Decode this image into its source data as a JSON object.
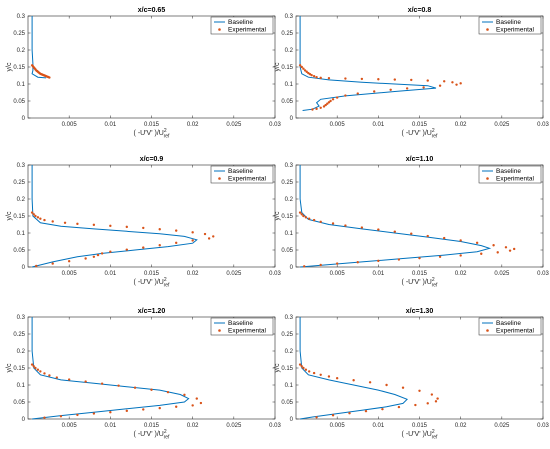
{
  "figure": {
    "xlabel": "( -U'V' )/U",
    "xlabel_sup": "2",
    "xlabel_sub": "ref",
    "ylabel": "y/c",
    "legend": [
      "Baseline",
      "Experimental"
    ],
    "colors": {
      "baseline": "#0072BD",
      "experimental": "#D95319"
    }
  },
  "chart_data": [
    {
      "type": "line",
      "title": "x/c=0.65",
      "grid": false,
      "legend_position": "top-right",
      "xlim": [
        0,
        0.03
      ],
      "ylim": [
        0,
        0.3
      ],
      "xticks": [
        "0.005",
        "0.01",
        "0.015",
        "0.02",
        "0.025",
        "0.03"
      ],
      "yticks": [
        "0",
        "0.05",
        "0.1",
        "0.15",
        "0.2",
        "0.25",
        "0.3"
      ],
      "series": [
        {
          "name": "Baseline",
          "style": "line",
          "x": [
            0.0005,
            0.0005,
            0.0005,
            0.0006,
            0.0006,
            0.0005,
            0.0012,
            0.0022
          ],
          "y": [
            0.3,
            0.25,
            0.2,
            0.16,
            0.14,
            0.13,
            0.12,
            0.118
          ]
        },
        {
          "name": "Experimental",
          "style": "marker",
          "x": [
            0.0005,
            0.0006,
            0.0007,
            0.0008,
            0.0009,
            0.001,
            0.0011,
            0.0012,
            0.0013,
            0.0014,
            0.0015,
            0.0016,
            0.0017,
            0.0018,
            0.0019,
            0.002,
            0.0021,
            0.0022,
            0.0023,
            0.0024,
            0.0025,
            0.0026
          ],
          "y": [
            0.155,
            0.152,
            0.149,
            0.146,
            0.143,
            0.14,
            0.138,
            0.136,
            0.134,
            0.132,
            0.13,
            0.129,
            0.128,
            0.127,
            0.126,
            0.125,
            0.124,
            0.123,
            0.122,
            0.121,
            0.12,
            0.119
          ]
        }
      ]
    },
    {
      "type": "line",
      "title": "x/c=0.8",
      "grid": false,
      "legend_position": "top-right",
      "xlim": [
        0,
        0.03
      ],
      "ylim": [
        0,
        0.3
      ],
      "xticks": [
        "0.005",
        "0.01",
        "0.015",
        "0.02",
        "0.025",
        "0.03"
      ],
      "yticks": [
        "0",
        "0.05",
        "0.1",
        "0.15",
        "0.2",
        "0.25",
        "0.3"
      ],
      "series": [
        {
          "name": "Baseline",
          "style": "line",
          "x": [
            0.0005,
            0.0005,
            0.0005,
            0.0007,
            0.0015,
            0.004,
            0.008,
            0.012,
            0.016,
            0.017,
            0.012,
            0.006,
            0.003,
            0.0025,
            0.0028,
            0.002,
            0.0008
          ],
          "y": [
            0.3,
            0.2,
            0.15,
            0.13,
            0.12,
            0.112,
            0.105,
            0.1,
            0.095,
            0.088,
            0.078,
            0.065,
            0.055,
            0.045,
            0.035,
            0.026,
            0.022
          ]
        },
        {
          "name": "Experimental",
          "style": "marker",
          "x": [
            0.0005,
            0.0007,
            0.0009,
            0.0011,
            0.0013,
            0.0015,
            0.0017,
            0.0019,
            0.0022,
            0.0025,
            0.003,
            0.004,
            0.006,
            0.008,
            0.01,
            0.012,
            0.014,
            0.016,
            0.018,
            0.019,
            0.02,
            0.0195,
            0.0175,
            0.0155,
            0.0135,
            0.0115,
            0.0095,
            0.0075,
            0.006,
            0.005,
            0.0045,
            0.0042,
            0.004,
            0.0038,
            0.0036,
            0.0034,
            0.003,
            0.0025,
            0.002
          ],
          "y": [
            0.155,
            0.15,
            0.145,
            0.14,
            0.136,
            0.132,
            0.129,
            0.126,
            0.123,
            0.12,
            0.118,
            0.117,
            0.116,
            0.115,
            0.114,
            0.113,
            0.112,
            0.11,
            0.108,
            0.105,
            0.102,
            0.098,
            0.095,
            0.09,
            0.087,
            0.083,
            0.078,
            0.072,
            0.066,
            0.06,
            0.055,
            0.05,
            0.046,
            0.042,
            0.038,
            0.034,
            0.03,
            0.027,
            0.025
          ]
        }
      ]
    },
    {
      "type": "line",
      "title": "x/c=0.9",
      "grid": false,
      "legend_position": "top-right",
      "xlim": [
        0,
        0.03
      ],
      "ylim": [
        0,
        0.3
      ],
      "xticks": [
        "0.005",
        "0.01",
        "0.015",
        "0.02",
        "0.025",
        "0.03"
      ],
      "yticks": [
        "0",
        "0.05",
        "0.1",
        "0.15",
        "0.2",
        "0.25",
        "0.3"
      ],
      "series": [
        {
          "name": "Baseline",
          "style": "line",
          "x": [
            0.0005,
            0.0005,
            0.0006,
            0.0015,
            0.004,
            0.008,
            0.012,
            0.016,
            0.019,
            0.0205,
            0.02,
            0.017,
            0.013,
            0.009,
            0.006,
            0.003,
            0.0005
          ],
          "y": [
            0.3,
            0.2,
            0.15,
            0.13,
            0.12,
            0.112,
            0.105,
            0.098,
            0.09,
            0.08,
            0.07,
            0.06,
            0.05,
            0.04,
            0.03,
            0.015,
            0.0
          ]
        },
        {
          "name": "Experimental",
          "style": "marker",
          "x": [
            0.0005,
            0.0007,
            0.0009,
            0.0012,
            0.0015,
            0.002,
            0.003,
            0.0045,
            0.006,
            0.008,
            0.01,
            0.012,
            0.014,
            0.016,
            0.018,
            0.02,
            0.0215,
            0.0225,
            0.022,
            0.02,
            0.018,
            0.016,
            0.014,
            0.012,
            0.01,
            0.009,
            0.0085,
            0.008,
            0.007,
            0.005,
            0.003,
            0.001
          ],
          "y": [
            0.16,
            0.155,
            0.15,
            0.146,
            0.142,
            0.138,
            0.134,
            0.13,
            0.127,
            0.124,
            0.121,
            0.118,
            0.115,
            0.111,
            0.107,
            0.102,
            0.097,
            0.09,
            0.084,
            0.078,
            0.071,
            0.064,
            0.057,
            0.051,
            0.045,
            0.04,
            0.035,
            0.03,
            0.025,
            0.017,
            0.01,
            0.003
          ]
        }
      ]
    },
    {
      "type": "line",
      "title": "x/c=1.10",
      "grid": false,
      "legend_position": "top-right",
      "xlim": [
        0,
        0.03
      ],
      "ylim": [
        0,
        0.3
      ],
      "xticks": [
        "0.005",
        "0.01",
        "0.015",
        "0.02",
        "0.025",
        "0.03"
      ],
      "yticks": [
        "0",
        "0.05",
        "0.1",
        "0.15",
        "0.2",
        "0.25",
        "0.3"
      ],
      "series": [
        {
          "name": "Baseline",
          "style": "line",
          "x": [
            0.0005,
            0.0005,
            0.0007,
            0.0015,
            0.004,
            0.008,
            0.012,
            0.016,
            0.02,
            0.0225,
            0.0235,
            0.022,
            0.018,
            0.013,
            0.008,
            0.004,
            0.0005
          ],
          "y": [
            0.3,
            0.2,
            0.16,
            0.14,
            0.125,
            0.112,
            0.1,
            0.088,
            0.075,
            0.063,
            0.055,
            0.045,
            0.035,
            0.025,
            0.015,
            0.007,
            0.0
          ]
        },
        {
          "name": "Experimental",
          "style": "marker",
          "x": [
            0.0005,
            0.0007,
            0.0009,
            0.0012,
            0.0016,
            0.0022,
            0.003,
            0.0045,
            0.006,
            0.008,
            0.01,
            0.012,
            0.014,
            0.016,
            0.018,
            0.02,
            0.022,
            0.024,
            0.0255,
            0.0265,
            0.026,
            0.0245,
            0.0225,
            0.02,
            0.0175,
            0.015,
            0.0125,
            0.01,
            0.0075,
            0.005,
            0.003,
            0.001
          ],
          "y": [
            0.16,
            0.155,
            0.15,
            0.146,
            0.142,
            0.138,
            0.133,
            0.128,
            0.122,
            0.116,
            0.11,
            0.104,
            0.098,
            0.091,
            0.085,
            0.078,
            0.071,
            0.064,
            0.058,
            0.053,
            0.048,
            0.043,
            0.039,
            0.034,
            0.03,
            0.026,
            0.022,
            0.018,
            0.014,
            0.01,
            0.006,
            0.002
          ]
        }
      ]
    },
    {
      "type": "line",
      "title": "x/c=1.20",
      "grid": false,
      "legend_position": "top-right",
      "xlim": [
        0,
        0.03
      ],
      "ylim": [
        0,
        0.3
      ],
      "xticks": [
        "0.005",
        "0.01",
        "0.015",
        "0.02",
        "0.025",
        "0.03"
      ],
      "yticks": [
        "0",
        "0.05",
        "0.1",
        "0.15",
        "0.2",
        "0.25",
        "0.3"
      ],
      "series": [
        {
          "name": "Baseline",
          "style": "line",
          "x": [
            0.0005,
            0.0005,
            0.0007,
            0.0015,
            0.004,
            0.008,
            0.012,
            0.016,
            0.0185,
            0.0195,
            0.019,
            0.016,
            0.012,
            0.008,
            0.004,
            0.0005
          ],
          "y": [
            0.3,
            0.2,
            0.15,
            0.13,
            0.115,
            0.105,
            0.095,
            0.085,
            0.072,
            0.06,
            0.05,
            0.04,
            0.03,
            0.02,
            0.01,
            0.0
          ]
        },
        {
          "name": "Experimental",
          "style": "marker",
          "x": [
            0.0005,
            0.0007,
            0.0009,
            0.0012,
            0.0015,
            0.002,
            0.0026,
            0.0035,
            0.005,
            0.007,
            0.009,
            0.011,
            0.013,
            0.015,
            0.017,
            0.019,
            0.0205,
            0.021,
            0.02,
            0.018,
            0.016,
            0.014,
            0.012,
            0.01,
            0.008,
            0.006,
            0.004,
            0.002
          ],
          "y": [
            0.16,
            0.155,
            0.15,
            0.145,
            0.14,
            0.134,
            0.128,
            0.122,
            0.116,
            0.11,
            0.104,
            0.098,
            0.092,
            0.086,
            0.079,
            0.071,
            0.06,
            0.047,
            0.04,
            0.036,
            0.032,
            0.028,
            0.024,
            0.02,
            0.016,
            0.012,
            0.008,
            0.004
          ]
        }
      ]
    },
    {
      "type": "line",
      "title": "x/c=1.30",
      "grid": false,
      "legend_position": "top-right",
      "xlim": [
        0,
        0.03
      ],
      "ylim": [
        0,
        0.3
      ],
      "xticks": [
        "0.005",
        "0.01",
        "0.015",
        "0.02",
        "0.025",
        "0.03"
      ],
      "yticks": [
        "0",
        "0.05",
        "0.1",
        "0.15",
        "0.2",
        "0.25",
        "0.3"
      ],
      "series": [
        {
          "name": "Baseline",
          "style": "line",
          "x": [
            0.0005,
            0.0005,
            0.0007,
            0.0015,
            0.004,
            0.007,
            0.01,
            0.012,
            0.0135,
            0.013,
            0.011,
            0.008,
            0.005,
            0.002,
            0.0005
          ],
          "y": [
            0.3,
            0.2,
            0.15,
            0.13,
            0.115,
            0.1,
            0.085,
            0.072,
            0.058,
            0.046,
            0.036,
            0.026,
            0.016,
            0.006,
            0.0
          ]
        },
        {
          "name": "Experimental",
          "style": "marker",
          "x": [
            0.0005,
            0.0007,
            0.0009,
            0.0012,
            0.0016,
            0.0022,
            0.003,
            0.004,
            0.005,
            0.007,
            0.009,
            0.011,
            0.013,
            0.015,
            0.0165,
            0.0172,
            0.017,
            0.016,
            0.0145,
            0.0125,
            0.0105,
            0.0085,
            0.0065,
            0.0045,
            0.0025
          ],
          "y": [
            0.16,
            0.155,
            0.15,
            0.145,
            0.14,
            0.135,
            0.13,
            0.125,
            0.12,
            0.114,
            0.108,
            0.1,
            0.092,
            0.083,
            0.072,
            0.06,
            0.052,
            0.046,
            0.041,
            0.035,
            0.029,
            0.023,
            0.017,
            0.011,
            0.005
          ]
        }
      ]
    }
  ]
}
